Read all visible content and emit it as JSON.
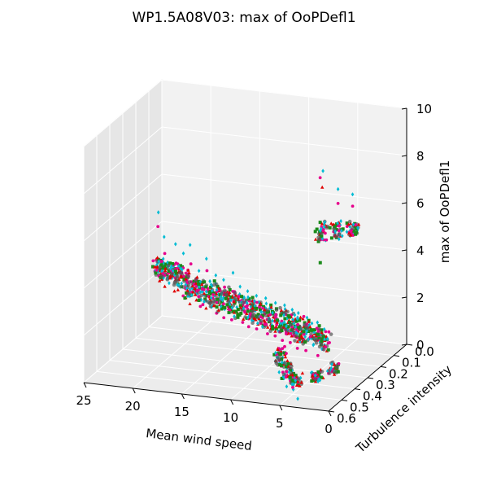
{
  "chart_data": {
    "type": "scatter",
    "projection": "3d",
    "title": "WP1.5A08V03: max of OoPDefl1",
    "xlabel": "Mean wind speed",
    "ylabel": "Turbulence intensity",
    "zlabel": "max of OoPDefl1",
    "xlim": [
      0,
      25
    ],
    "ylim": [
      0,
      0.6
    ],
    "zlim": [
      0,
      10
    ],
    "x_ticks": [
      "25",
      "20",
      "15",
      "10",
      "5",
      "0"
    ],
    "y_ticks": [
      "0.0",
      "0.1",
      "0.2",
      "0.3",
      "0.4",
      "0.5",
      "0.6"
    ],
    "z_ticks": [
      "0",
      "2",
      "4",
      "6",
      "8",
      "10"
    ],
    "grid": true,
    "legend": "none",
    "series_colors": [
      "#00bcd4",
      "#e6008c",
      "#e00000",
      "#555555",
      "#1a8a1a"
    ],
    "series_markers": [
      "diamond",
      "circle",
      "triangle",
      "circle",
      "square"
    ],
    "clusters": [
      {
        "x": 24,
        "y": 0.1,
        "z_range": [
          2.2,
          3.0
        ],
        "z_outliers": [
          4.9,
          4.3,
          2.0
        ]
      },
      {
        "x": 23,
        "y": 0.12,
        "z_range": [
          2.2,
          2.9
        ],
        "z_outliers": [
          4.0,
          3.3,
          1.9
        ]
      },
      {
        "x": 22,
        "y": 0.13,
        "z_range": [
          2.1,
          2.9
        ],
        "z_outliers": [
          3.8,
          3.0,
          1.8
        ]
      },
      {
        "x": 21,
        "y": 0.14,
        "z_range": [
          2.0,
          2.9
        ],
        "z_outliers": [
          3.5,
          1.7
        ]
      },
      {
        "x": 20,
        "y": 0.16,
        "z_range": [
          1.8,
          2.8
        ],
        "z_outliers": [
          4.0,
          3.2,
          1.5
        ]
      },
      {
        "x": 19,
        "y": 0.17,
        "z_range": [
          1.8,
          2.7
        ],
        "z_outliers": [
          3.0,
          1.5
        ]
      },
      {
        "x": 18,
        "y": 0.18,
        "z_range": [
          1.7,
          2.7
        ],
        "z_outliers": [
          3.6,
          3.1,
          1.5
        ]
      },
      {
        "x": 17,
        "y": 0.19,
        "z_range": [
          1.7,
          2.7
        ],
        "z_outliers": [
          3.0,
          1.4
        ]
      },
      {
        "x": 16,
        "y": 0.2,
        "z_range": [
          1.6,
          2.6
        ],
        "z_outliers": [
          2.9,
          1.3
        ]
      },
      {
        "x": 15,
        "y": 0.21,
        "z_range": [
          1.6,
          2.6
        ],
        "z_outliers": [
          3.3,
          1.3
        ]
      },
      {
        "x": 14,
        "y": 0.22,
        "z_range": [
          1.5,
          2.5
        ],
        "z_outliers": [
          2.8,
          1.3
        ]
      },
      {
        "x": 13,
        "y": 0.23,
        "z_range": [
          1.4,
          2.4
        ],
        "z_outliers": [
          2.7,
          1.2
        ]
      },
      {
        "x": 12,
        "y": 0.24,
        "z_range": [
          1.4,
          2.4
        ],
        "z_outliers": [
          2.6,
          1.2
        ]
      },
      {
        "x": 11,
        "y": 0.25,
        "z_range": [
          1.4,
          2.4
        ],
        "z_outliers": [
          2.6,
          1.1
        ]
      },
      {
        "x": 10,
        "y": 0.26,
        "z_range": [
          1.3,
          2.3
        ],
        "z_outliers": [
          2.5,
          1.1
        ]
      },
      {
        "x": 9,
        "y": 0.27,
        "z_range": [
          1.3,
          2.3
        ],
        "z_outliers": [
          2.5,
          1.0
        ]
      },
      {
        "x": 8,
        "y": 0.28,
        "z_range": [
          1.3,
          2.2
        ],
        "z_outliers": [
          2.4,
          1.0
        ]
      },
      {
        "x": 7,
        "y": 0.3,
        "z_range": [
          1.2,
          2.2
        ],
        "z_outliers": [
          2.4,
          0.9
        ]
      },
      {
        "x": 6,
        "y": 0.31,
        "z_range": [
          1.2,
          2.1
        ],
        "z_outliers": [
          2.3,
          0.9
        ]
      },
      {
        "x": 5,
        "y": 0.32,
        "z_range": [
          1.2,
          2.0
        ],
        "z_outliers": [
          2.2,
          0.8
        ]
      },
      {
        "x": 4,
        "y": 0.33,
        "z_range": [
          1.1,
          1.9
        ],
        "z_outliers": [
          2.0
        ]
      },
      {
        "x": 8,
        "y": 0.05,
        "z_range": [
          4.2,
          5.0
        ],
        "z_outliers": [
          7.2,
          6.9,
          6.5,
          3.3
        ]
      },
      {
        "x": 6.5,
        "y": 0.05,
        "z_range": [
          4.4,
          5.1
        ],
        "z_outliers": [
          6.5,
          5.9
        ]
      },
      {
        "x": 5,
        "y": 0.04,
        "z_range": [
          4.5,
          5.2
        ],
        "z_outliers": [
          6.3,
          5.8
        ]
      },
      {
        "x": 7,
        "y": 0.45,
        "z_range": [
          0.9,
          1.7
        ],
        "z_outliers": [
          0.6
        ]
      },
      {
        "x": 5.5,
        "y": 0.5,
        "z_range": [
          0.6,
          1.4
        ],
        "z_outliers": [
          0.3,
          1.7
        ]
      },
      {
        "x": 4,
        "y": 0.55,
        "z_range": [
          0.5,
          1.2
        ],
        "z_outliers": [
          0.1
        ]
      },
      {
        "x": 2.5,
        "y": 0.5,
        "z_range": [
          0.7,
          1.1
        ]
      },
      {
        "x": 1.5,
        "y": 0.45,
        "z_range": [
          0.8,
          1.2
        ]
      }
    ]
  }
}
